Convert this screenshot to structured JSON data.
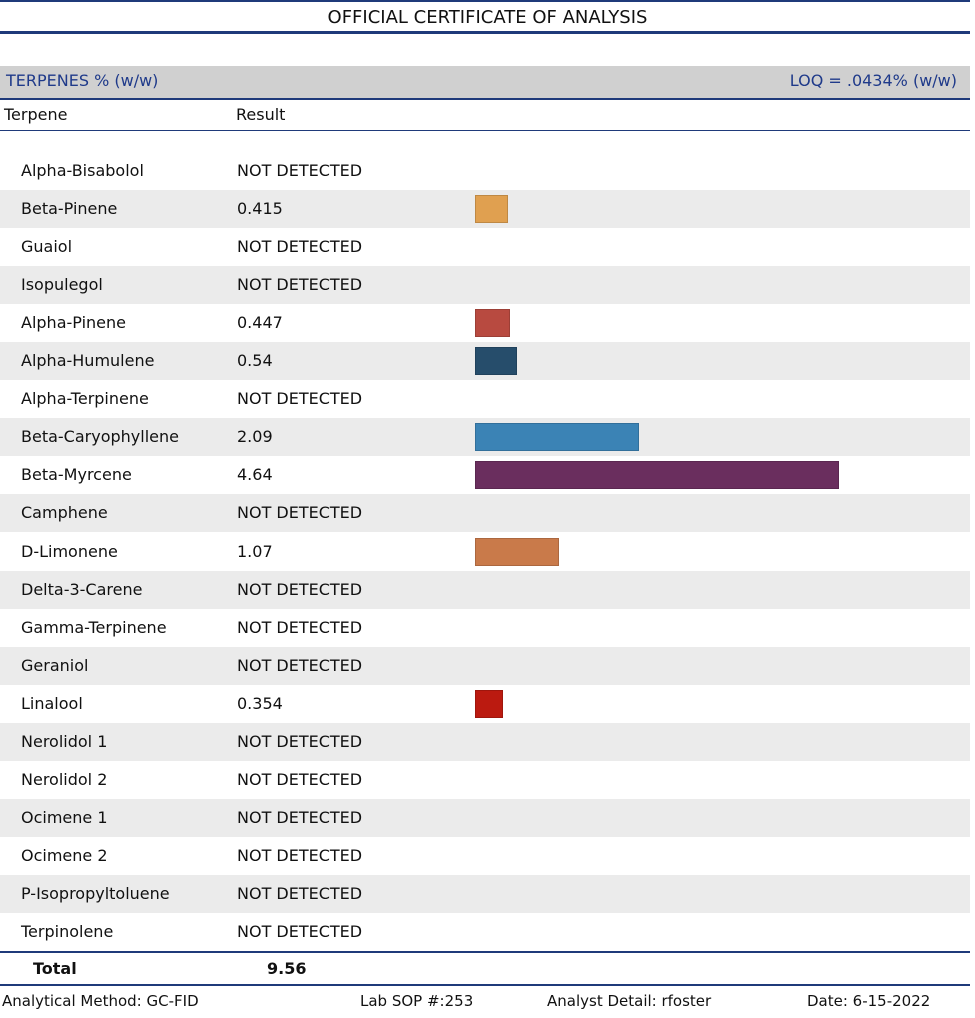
{
  "title": "OFFICIAL CERTIFICATE OF ANALYSIS",
  "section": {
    "title": "TERPENES % (w/w)",
    "loq": "LOQ = .0434% (w/w)"
  },
  "table": {
    "headers": [
      "Terpene",
      "Result"
    ],
    "rows": [
      {
        "name": "Alpha-Bisabolol",
        "result": "NOT DETECTED"
      },
      {
        "name": "Beta-Pinene",
        "result": 0.415,
        "color": "#e0a050"
      },
      {
        "name": "Guaiol",
        "result": "NOT DETECTED"
      },
      {
        "name": "Isopulegol",
        "result": "NOT DETECTED"
      },
      {
        "name": "Alpha-Pinene",
        "result": 0.447,
        "color": "#b84a40"
      },
      {
        "name": "Alpha-Humulene",
        "result": 0.54,
        "color": "#264d6b"
      },
      {
        "name": "Alpha-Terpinene",
        "result": "NOT DETECTED"
      },
      {
        "name": "Beta-Caryophyllene",
        "result": 2.09,
        "color": "#3b83b5"
      },
      {
        "name": "Beta-Myrcene",
        "result": 4.64,
        "color": "#6a2e5e"
      },
      {
        "name": "Camphene",
        "result": "NOT DETECTED"
      },
      {
        "name": "D-Limonene",
        "result": 1.07,
        "color": "#c97a4a"
      },
      {
        "name": "Delta-3-Carene",
        "result": "NOT DETECTED"
      },
      {
        "name": "Gamma-Terpinene",
        "result": "NOT DETECTED"
      },
      {
        "name": "Geraniol",
        "result": "NOT DETECTED"
      },
      {
        "name": "Linalool",
        "result": 0.354,
        "color": "#bb1a10"
      },
      {
        "name": "Nerolidol 1",
        "result": "NOT DETECTED"
      },
      {
        "name": "Nerolidol 2",
        "result": "NOT DETECTED"
      },
      {
        "name": "Ocimene 1",
        "result": "NOT DETECTED"
      },
      {
        "name": "Ocimene 2",
        "result": "NOT DETECTED"
      },
      {
        "name": "P-Isopropyltoluene",
        "result": "NOT DETECTED"
      },
      {
        "name": "Terpinolene",
        "result": "NOT DETECTED"
      }
    ],
    "total_label": "Total",
    "total": 9.56
  },
  "footer": {
    "method": "Analytical Method: GC-FID",
    "sop": "Lab SOP #:253",
    "analyst": "Analyst Detail: rfoster",
    "date": "Date: 6-15-2022"
  }
}
